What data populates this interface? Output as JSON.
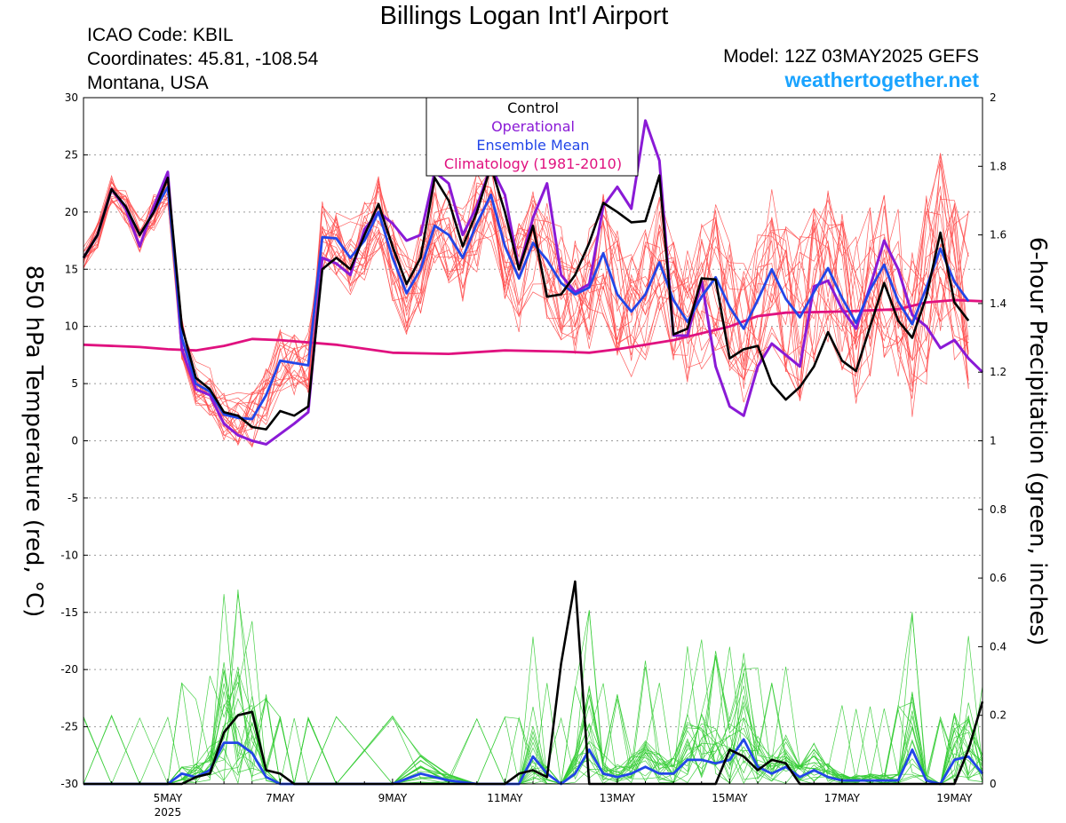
{
  "header": {
    "title": "Billings Logan Int'l Airport",
    "icao": "ICAO Code: KBIL",
    "coordinates": "Coordinates: 45.81, -108.54",
    "region": "Montana, USA",
    "model": "Model: 12Z 03MAY2025 GEFS",
    "site": "weathertogether.net"
  },
  "colors": {
    "members_temp": "#ff4d4d",
    "members_precip": "#33cc33",
    "control": "#000000",
    "operational": "#8a1ad6",
    "ensemble_mean": "#2246e8",
    "climatology": "#e0117f",
    "site": "#1aa3ff"
  },
  "chart_data": {
    "type": "line",
    "title": "Billings Logan Int'l Airport",
    "ylabel": "850 hPa Temperature (red, °C)",
    "y2label": "6-hour Precipitation (green, inches)",
    "ylim": [
      -30,
      30
    ],
    "y2lim": [
      0,
      2
    ],
    "yticks": [
      "30",
      "25",
      "20",
      "15",
      "10",
      "5",
      "0",
      "-5",
      "-10",
      "-15",
      "-20",
      "-25",
      "-30"
    ],
    "y2ticks": [
      "2",
      "1.8",
      "1.6",
      "1.4",
      "1.2",
      "1",
      "0.8",
      "0.6",
      "0.4",
      "0.2",
      "0"
    ],
    "x_ticks": [
      {
        "day": 5,
        "label": "5MAY",
        "sub": "2025"
      },
      {
        "day": 7,
        "label": "7MAY",
        "sub": ""
      },
      {
        "day": 9,
        "label": "9MAY",
        "sub": ""
      },
      {
        "day": 11,
        "label": "11MAY",
        "sub": ""
      },
      {
        "day": 13,
        "label": "13MAY",
        "sub": ""
      },
      {
        "day": 15,
        "label": "15MAY",
        "sub": ""
      },
      {
        "day": 17,
        "label": "17MAY",
        "sub": ""
      },
      {
        "day": 19,
        "label": "19MAY",
        "sub": ""
      }
    ],
    "xlim_days": [
      3.5,
      19.5
    ],
    "grid": true,
    "legend_position": "top-center",
    "legend": [
      "Control",
      "Operational",
      "Ensemble Mean",
      "Climatology (1981-2010)"
    ],
    "series": [
      {
        "name": "Control",
        "axis": "left",
        "x": [
          3.5,
          3.75,
          4,
          4.25,
          4.5,
          4.75,
          5,
          5.25,
          5.5,
          5.75,
          6,
          6.25,
          6.5,
          6.75,
          7,
          7.25,
          7.5,
          7.75,
          8,
          8.25,
          8.5,
          8.75,
          9,
          9.25,
          9.5,
          9.75,
          10,
          10.25,
          10.5,
          10.75,
          11,
          11.25,
          11.5,
          11.75,
          12,
          12.25,
          12.5,
          12.75,
          13,
          13.25,
          13.5,
          13.75,
          14,
          14.25,
          14.5,
          14.75,
          15,
          15.25,
          15.5,
          15.75,
          16,
          16.25,
          16.5,
          16.75,
          17,
          17.25,
          17.5,
          17.75,
          18,
          18.25,
          18.5,
          18.75,
          19,
          19.25,
          19.5
        ],
        "values": [
          16,
          18,
          22,
          20.5,
          18,
          20,
          23,
          10,
          5.5,
          4.5,
          2.5,
          2.2,
          1.2,
          1,
          2.6,
          2.2,
          3,
          15,
          16,
          15,
          18,
          20.7,
          17,
          13.7,
          16,
          23,
          21,
          17,
          20,
          24,
          20,
          15,
          18.8,
          12.6,
          12.8,
          14.5,
          17.3,
          20.8,
          20,
          19.1,
          19.2,
          23.2,
          9.3,
          9.8,
          14.2,
          14.1,
          7.2,
          8,
          8.3,
          5,
          3.6,
          4.7,
          6.5,
          9.5,
          7,
          6.1,
          10,
          13.8,
          10.5,
          9,
          12.6,
          18.2,
          12.1,
          10.5,
          null
        ]
      },
      {
        "name": "Operational",
        "axis": "left",
        "x": [
          3.5,
          3.75,
          4,
          4.25,
          4.5,
          4.75,
          5,
          5.25,
          5.5,
          5.75,
          6,
          6.25,
          6.5,
          6.75,
          7,
          7.25,
          7.5,
          7.75,
          8,
          8.25,
          8.5,
          8.75,
          9,
          9.25,
          9.5,
          9.75,
          10,
          10.25,
          10.5,
          10.75,
          11,
          11.25,
          11.5,
          11.75,
          12,
          12.25,
          12.5,
          12.75,
          13,
          13.25,
          13.5,
          13.75,
          14,
          14.25,
          14.5,
          14.75,
          15,
          15.25,
          15.5,
          15.75,
          16,
          16.25,
          16.5,
          16.75,
          17,
          17.25,
          17.5,
          17.75,
          18,
          18.25,
          18.5,
          18.75,
          19,
          19.25,
          19.5
        ],
        "values": [
          16,
          18,
          22,
          20.3,
          17,
          20.5,
          23.5,
          8,
          4.5,
          4,
          1.5,
          0.5,
          0,
          -0.3,
          0.6,
          1.5,
          2.5,
          16,
          15.5,
          14.5,
          18.5,
          20,
          19,
          17.5,
          18,
          23.5,
          22.5,
          18,
          20.5,
          24,
          21.5,
          15,
          19.5,
          22.5,
          14.5,
          13,
          13.7,
          20.5,
          22.2,
          20.3,
          28,
          24.5,
          9.2,
          9.2,
          14,
          6.5,
          3,
          2.2,
          6.5,
          8.5,
          7.5,
          6.5,
          13.5,
          14,
          11.5,
          9.8,
          13.5,
          17.5,
          15,
          11,
          10,
          8.1,
          8.8,
          7.2,
          6
        ]
      },
      {
        "name": "Ensemble Mean",
        "axis": "left",
        "x": [
          3.5,
          3.75,
          4,
          4.25,
          4.5,
          4.75,
          5,
          5.25,
          5.5,
          5.75,
          6,
          6.25,
          6.5,
          6.75,
          7,
          7.25,
          7.5,
          7.75,
          8,
          8.25,
          8.5,
          8.75,
          9,
          9.25,
          9.5,
          9.75,
          10,
          10.25,
          10.5,
          10.75,
          11,
          11.25,
          11.5,
          11.75,
          12,
          12.25,
          12.5,
          12.75,
          13,
          13.25,
          13.5,
          13.75,
          14,
          14.25,
          14.5,
          14.75,
          15,
          15.25,
          15.5,
          15.75,
          16,
          16.25,
          16.5,
          16.75,
          17,
          17.25,
          17.5,
          17.75,
          18,
          18.25,
          18.5,
          18.75,
          19,
          19.25,
          19.5
        ],
        "values": [
          16,
          18,
          22,
          20.5,
          18,
          20,
          22.2,
          9,
          5,
          4.3,
          2.3,
          2,
          1.9,
          4,
          7,
          6.8,
          6.6,
          17.8,
          17.7,
          16,
          17.5,
          20,
          16,
          12.9,
          15,
          18.8,
          18,
          16,
          19,
          21.5,
          17,
          14.2,
          17.3,
          15.8,
          13.8,
          12.8,
          13.4,
          16.4,
          12.8,
          11.3,
          12.8,
          15.6,
          12.3,
          10.4,
          12.6,
          14.3,
          11.7,
          9.8,
          12.3,
          15,
          12.4,
          10.8,
          13,
          15.1,
          12.5,
          10.3,
          13.2,
          15.4,
          12.2,
          10.2,
          13.4,
          16.8,
          13.9,
          12.2,
          null
        ]
      },
      {
        "name": "Climatology (1981-2010)",
        "axis": "left",
        "x": [
          3.5,
          4.5,
          5,
          5.5,
          6,
          6.5,
          7,
          7.5,
          8,
          9,
          10,
          11,
          12,
          12.5,
          13,
          14,
          15,
          15.5,
          16,
          17,
          18,
          18.5,
          19,
          19.5
        ],
        "values": [
          8.4,
          8.2,
          8,
          7.9,
          8.3,
          8.9,
          8.8,
          8.6,
          8.4,
          7.7,
          7.6,
          7.9,
          7.8,
          7.7,
          8,
          8.8,
          10,
          10.9,
          11.2,
          11.3,
          11.5,
          12.1,
          12.3,
          12.2
        ]
      },
      {
        "name": "Control",
        "axis": "right",
        "x": [
          3.5,
          4,
          4.5,
          5,
          5.25,
          5.5,
          5.75,
          6,
          6.25,
          6.5,
          6.75,
          7,
          7.25,
          7.5,
          8,
          9,
          10,
          10.5,
          11,
          11.25,
          11.5,
          11.75,
          12,
          12.25,
          12.5,
          12.75,
          13,
          14,
          14.5,
          14.75,
          15,
          15.25,
          15.5,
          15.75,
          16,
          16.25,
          16.5,
          17,
          18,
          19,
          19.25,
          19.5
        ],
        "values": [
          0,
          0,
          0,
          0,
          0,
          0.02,
          0.03,
          0.15,
          0.2,
          0.21,
          0.04,
          0.03,
          0,
          0,
          0,
          0,
          0,
          0,
          0,
          0.03,
          0.04,
          0.02,
          0.35,
          0.59,
          0,
          0,
          0,
          0,
          0,
          0,
          0.1,
          0.08,
          0.04,
          0.07,
          0.06,
          0,
          0,
          0,
          0,
          0,
          0.1,
          0.24
        ]
      },
      {
        "name": "Ensemble Mean",
        "axis": "right",
        "x": [
          3.5,
          4,
          4.5,
          5,
          5.25,
          5.5,
          5.75,
          6,
          6.25,
          6.5,
          6.75,
          7,
          7.25,
          7.5,
          8,
          9,
          9.5,
          10,
          10.5,
          11,
          11.25,
          11.5,
          11.75,
          12,
          12.25,
          12.5,
          12.75,
          13,
          13.25,
          13.5,
          13.75,
          14,
          14.25,
          14.5,
          14.75,
          15,
          15.25,
          15.5,
          15.75,
          16,
          16.25,
          16.5,
          16.75,
          17,
          17.25,
          17.5,
          17.75,
          18,
          18.25,
          18.5,
          18.75,
          19,
          19.25,
          19.5
        ],
        "values": [
          0,
          0,
          0,
          0,
          0.03,
          0.02,
          0.04,
          0.12,
          0.12,
          0.09,
          0.02,
          0,
          0,
          0,
          0,
          0,
          0.03,
          0.01,
          0,
          0,
          0,
          0.08,
          0.03,
          0,
          0.03,
          0.1,
          0.03,
          0.02,
          0.03,
          0.05,
          0.03,
          0.03,
          0.07,
          0.07,
          0.06,
          0.07,
          0.13,
          0.05,
          0.03,
          0.05,
          0.02,
          0.04,
          0.02,
          0.01,
          0.01,
          0.01,
          0.01,
          0.01,
          0.1,
          0.01,
          0,
          0.07,
          0.08,
          0.03
        ]
      }
    ]
  }
}
